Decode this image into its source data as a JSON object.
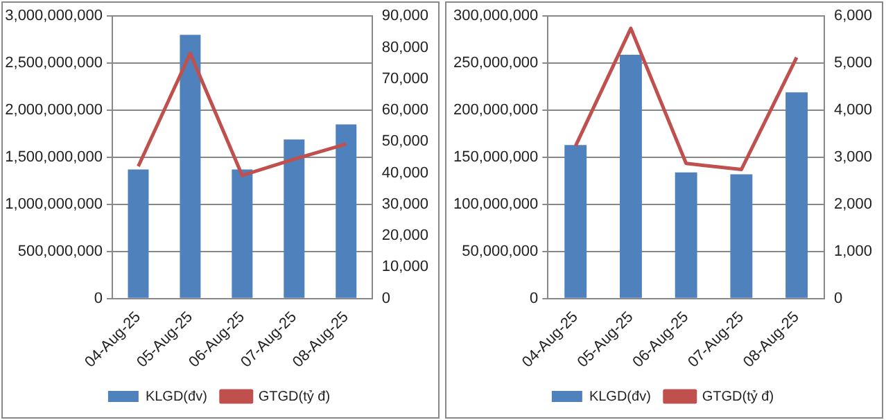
{
  "chart_data": [
    {
      "type": "bar",
      "categories": [
        "04-Aug-25",
        "05-Aug-25",
        "06-Aug-25",
        "07-Aug-25",
        "08-Aug-25"
      ],
      "series": [
        {
          "name": "KLGD(đv)",
          "color": "#4f81bd",
          "values": [
            1370000000,
            2800000000,
            1370000000,
            1690000000,
            1850000000
          ]
        },
        {
          "name": "GTGD(tỷ đ)",
          "type": "line",
          "axis": "y2",
          "color": "#c0504d",
          "values": [
            42100,
            78100,
            39200,
            44400,
            49200
          ]
        }
      ],
      "ylim": [
        0,
        3000000000
      ],
      "yticks": [
        0,
        {
          "value": 500000000,
          "label": "500,000,000"
        },
        {
          "value": 1000000000,
          "label": "1,000,000,000"
        },
        {
          "value": 1500000000,
          "label": "1,500,000,000"
        },
        {
          "value": 2000000000,
          "label": "2,000,000,000"
        },
        {
          "value": 2500000000,
          "label": "2,500,000,000"
        },
        {
          "value": 3000000000,
          "label": "3,000,000,000"
        }
      ],
      "y2lim": [
        0,
        90000
      ],
      "y2ticks": [
        0,
        {
          "value": 10000,
          "label": "10,000"
        },
        {
          "value": 20000,
          "label": "20,000"
        },
        {
          "value": 30000,
          "label": "30,000"
        },
        {
          "value": 40000,
          "label": "40,000"
        },
        {
          "value": 50000,
          "label": "50,000"
        },
        {
          "value": 60000,
          "label": "60,000"
        },
        {
          "value": 70000,
          "label": "70,000"
        },
        {
          "value": 80000,
          "label": "80,000"
        },
        {
          "value": 90000,
          "label": "90,000"
        }
      ],
      "grid": "y",
      "legend": "bottom",
      "marker": "none",
      "line_style": "solid"
    },
    {
      "type": "bar",
      "categories": [
        "04-Aug-25",
        "05-Aug-25",
        "06-Aug-25",
        "07-Aug-25",
        "08-Aug-25"
      ],
      "series": [
        {
          "name": "KLGD(đv)",
          "color": "#4f81bd",
          "values": [
            163000000,
            259000000,
            134000000,
            132000000,
            219000000
          ]
        },
        {
          "name": "GTGD(tỷ đ)",
          "type": "line",
          "axis": "y2",
          "color": "#c0504d",
          "values": [
            3240,
            5740,
            2870,
            2740,
            5120
          ]
        }
      ],
      "ylim": [
        0,
        300000000
      ],
      "yticks": [
        0,
        {
          "value": 50000000,
          "label": "50,000,000"
        },
        {
          "value": 100000000,
          "label": "100,000,000"
        },
        {
          "value": 150000000,
          "label": "150,000,000"
        },
        {
          "value": 200000000,
          "label": "200,000,000"
        },
        {
          "value": 250000000,
          "label": "250,000,000"
        },
        {
          "value": 300000000,
          "label": "300,000,000"
        }
      ],
      "y2lim": [
        0,
        6000
      ],
      "y2ticks": [
        0,
        {
          "value": 1000,
          "label": "1,000"
        },
        {
          "value": 2000,
          "label": "2,000"
        },
        {
          "value": 3000,
          "label": "3,000"
        },
        {
          "value": 4000,
          "label": "4,000"
        },
        {
          "value": 5000,
          "label": "5,000"
        },
        {
          "value": 6000,
          "label": "6,000"
        }
      ],
      "grid": "y",
      "legend": "bottom",
      "marker": "none",
      "line_style": "solid"
    }
  ]
}
